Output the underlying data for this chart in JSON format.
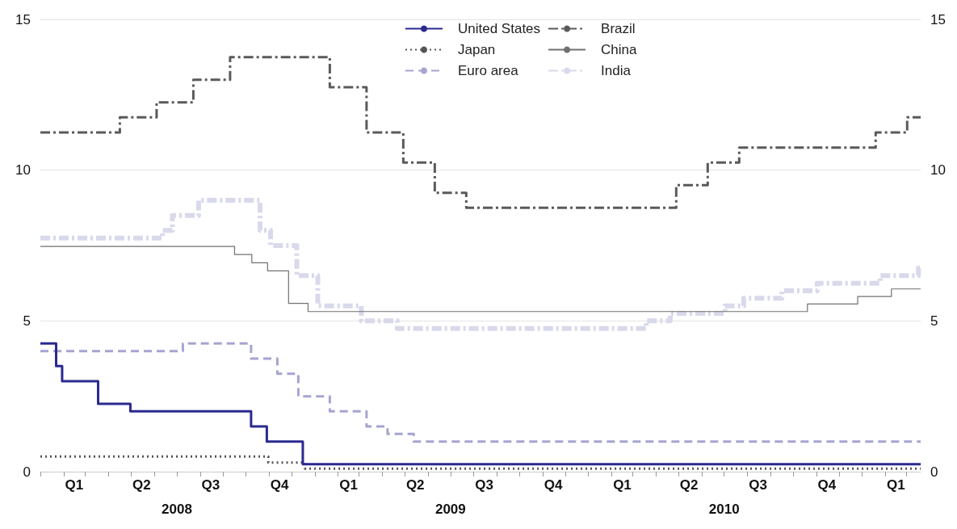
{
  "chart_data": {
    "type": "step",
    "xlim": [
      "2008-01-01",
      "2011-03-20"
    ],
    "xticks": [
      {
        "value": "2008-01-01",
        "label": null
      },
      {
        "value": "2008-02-01",
        "label": null
      },
      {
        "value": "2008-03-01",
        "label": null
      },
      {
        "value": "2008-04-01",
        "label": null
      },
      {
        "value": "2008-05-01",
        "label": null
      },
      {
        "value": "2008-06-01",
        "label": null
      },
      {
        "value": "2008-07-01",
        "label": null
      },
      {
        "value": "2008-08-01",
        "label": null
      },
      {
        "value": "2008-09-01",
        "label": null
      },
      {
        "value": "2008-10-01",
        "label": null
      },
      {
        "value": "2008-11-01",
        "label": null
      },
      {
        "value": "2008-12-01",
        "label": null
      },
      {
        "value": "2009-01-01",
        "label": null
      },
      {
        "value": "2009-02-01",
        "label": null
      },
      {
        "value": "2009-03-01",
        "label": null
      },
      {
        "value": "2009-04-01",
        "label": null
      },
      {
        "value": "2009-05-01",
        "label": null
      },
      {
        "value": "2009-06-01",
        "label": null
      },
      {
        "value": "2009-07-01",
        "label": null
      },
      {
        "value": "2009-08-01",
        "label": null
      },
      {
        "value": "2009-09-01",
        "label": null
      },
      {
        "value": "2009-10-01",
        "label": null
      },
      {
        "value": "2009-11-01",
        "label": null
      },
      {
        "value": "2009-12-01",
        "label": null
      },
      {
        "value": "2010-01-01",
        "label": null
      },
      {
        "value": "2010-02-01",
        "label": null
      },
      {
        "value": "2010-03-01",
        "label": null
      },
      {
        "value": "2010-04-01",
        "label": null
      },
      {
        "value": "2010-05-01",
        "label": null
      },
      {
        "value": "2010-06-01",
        "label": null
      },
      {
        "value": "2010-07-01",
        "label": null
      },
      {
        "value": "2010-08-01",
        "label": null
      },
      {
        "value": "2010-09-01",
        "label": null
      },
      {
        "value": "2010-10-01",
        "label": null
      },
      {
        "value": "2010-11-01",
        "label": null
      },
      {
        "value": "2010-12-01",
        "label": null
      },
      {
        "value": "2011-01-01",
        "label": null
      },
      {
        "value": "2011-02-01",
        "label": null
      },
      {
        "value": "2011-03-01",
        "label": null
      },
      {
        "value": "2008-02-15",
        "label": "Q1"
      },
      {
        "value": "2008-05-15",
        "label": "Q2"
      },
      {
        "value": "2008-08-15",
        "label": "Q3"
      },
      {
        "value": "2008-11-15",
        "label": "Q4"
      },
      {
        "value": "2009-02-15",
        "label": "Q1"
      },
      {
        "value": "2009-05-15",
        "label": "Q2"
      },
      {
        "value": "2009-08-15",
        "label": "Q3"
      },
      {
        "value": "2009-11-15",
        "label": "Q4"
      },
      {
        "value": "2010-02-15",
        "label": "Q1"
      },
      {
        "value": "2010-05-15",
        "label": "Q2"
      },
      {
        "value": "2010-08-15",
        "label": "Q3"
      },
      {
        "value": "2010-11-15",
        "label": "Q4"
      },
      {
        "value": "2011-02-15",
        "label": "Q1"
      }
    ],
    "x2lim": [
      "2008-01-01",
      "2011-03-20"
    ],
    "x2ticks": [
      {
        "value": "2008-07-01",
        "label": "2008"
      },
      {
        "value": "2009-07-01",
        "label": "2009"
      },
      {
        "value": "2010-07-01",
        "label": "2010"
      }
    ],
    "ylim": [
      0,
      15
    ],
    "yticks": [
      0,
      5,
      10,
      15
    ],
    "y2lim": [
      0,
      15
    ],
    "y2ticks": [
      0,
      5,
      10,
      15
    ],
    "grid": "y",
    "legend": "top",
    "marker": "none",
    "series": [
      {
        "name": "United States",
        "color": "#2b2a8f",
        "line_style": "solid",
        "x": [
          "2008-01-01",
          "2008-01-22",
          "2008-01-30",
          "2008-03-18",
          "2008-04-30",
          "2008-10-08",
          "2008-10-29",
          "2008-12-16",
          "2011-03-20"
        ],
        "values": [
          4.25,
          3.5,
          3.0,
          2.25,
          2.0,
          1.5,
          1.0,
          0.25,
          0.25
        ]
      },
      {
        "name": "Japan",
        "color": "#555555",
        "line_style": "dotted",
        "x": [
          "2008-01-01",
          "2008-10-31",
          "2008-12-19",
          "2011-03-20"
        ],
        "values": [
          0.5,
          0.3,
          0.1,
          0.1
        ]
      },
      {
        "name": "Euro area",
        "color": "#a6a4d0",
        "line_style": "dashed",
        "x": [
          "2008-01-01",
          "2008-07-09",
          "2008-10-08",
          "2008-11-12",
          "2008-12-10",
          "2009-01-21",
          "2009-03-11",
          "2009-04-08",
          "2009-05-13",
          "2011-03-20"
        ],
        "values": [
          4.0,
          4.25,
          3.75,
          3.25,
          2.5,
          2.0,
          1.5,
          1.25,
          1.0,
          1.0
        ]
      },
      {
        "name": "Brazil",
        "color": "#5a5a5a",
        "line_style": "dashdot",
        "x": [
          "2008-01-01",
          "2008-04-16",
          "2008-06-04",
          "2008-07-23",
          "2008-09-10",
          "2009-01-21",
          "2009-03-11",
          "2009-04-29",
          "2009-06-10",
          "2009-07-22",
          "2010-04-28",
          "2010-06-09",
          "2010-07-21",
          "2011-01-19",
          "2011-03-02",
          "2011-03-20"
        ],
        "values": [
          11.25,
          11.75,
          12.25,
          13.0,
          13.75,
          12.75,
          11.25,
          10.25,
          9.25,
          8.75,
          9.5,
          10.25,
          10.75,
          11.25,
          11.75,
          11.75
        ]
      },
      {
        "name": "China",
        "color": "#707070",
        "line_style": "solid",
        "x": [
          "2008-01-01",
          "2008-09-16",
          "2008-10-09",
          "2008-10-30",
          "2008-11-27",
          "2008-12-23",
          "2010-10-20",
          "2010-12-26",
          "2011-02-09",
          "2011-03-20"
        ],
        "values": [
          7.47,
          7.2,
          6.93,
          6.66,
          5.58,
          5.31,
          5.56,
          5.81,
          6.06,
          6.06
        ]
      },
      {
        "name": "India",
        "color": "#d9d9ec",
        "line_style": "dashdot",
        "x": [
          "2008-01-01",
          "2008-06-12",
          "2008-06-25",
          "2008-07-30",
          "2008-10-20",
          "2008-11-03",
          "2008-12-08",
          "2009-01-05",
          "2009-03-04",
          "2009-04-21",
          "2010-03-19",
          "2010-04-20",
          "2010-07-02",
          "2010-07-27",
          "2010-09-16",
          "2010-11-02",
          "2011-01-25",
          "2011-03-17",
          "2011-03-20"
        ],
        "values": [
          7.75,
          8.0,
          8.5,
          9.0,
          8.0,
          7.5,
          6.5,
          5.5,
          5.0,
          4.75,
          5.0,
          5.25,
          5.5,
          5.75,
          6.0,
          6.25,
          6.5,
          6.75,
          6.75
        ]
      }
    ]
  }
}
